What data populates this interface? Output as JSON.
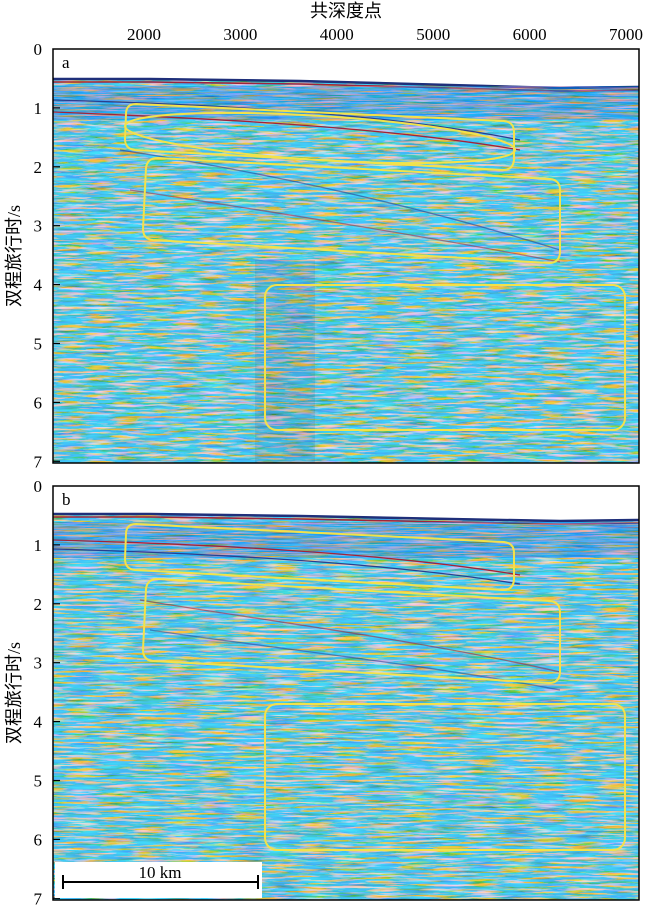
{
  "top_axis": {
    "title": "共深度点",
    "ticks": [
      "2000",
      "3000",
      "4000",
      "5000",
      "6000",
      "7000"
    ]
  },
  "colors": {
    "highlight_box": "#f2e24a",
    "seismic_red": "#b0263a",
    "seismic_blue": "#2a3f8f",
    "seismic_bg": "#e9dde6"
  },
  "panels": [
    {
      "label": "a",
      "ylabel": "双程旅行时/s",
      "yticks": [
        "0",
        "1",
        "2",
        "3",
        "4",
        "5",
        "6",
        "7"
      ]
    },
    {
      "label": "b",
      "ylabel": "双程旅行时/s",
      "yticks": [
        "0",
        "1",
        "2",
        "3",
        "4",
        "5",
        "6",
        "7"
      ],
      "scale_bar": "10 km"
    }
  ]
}
